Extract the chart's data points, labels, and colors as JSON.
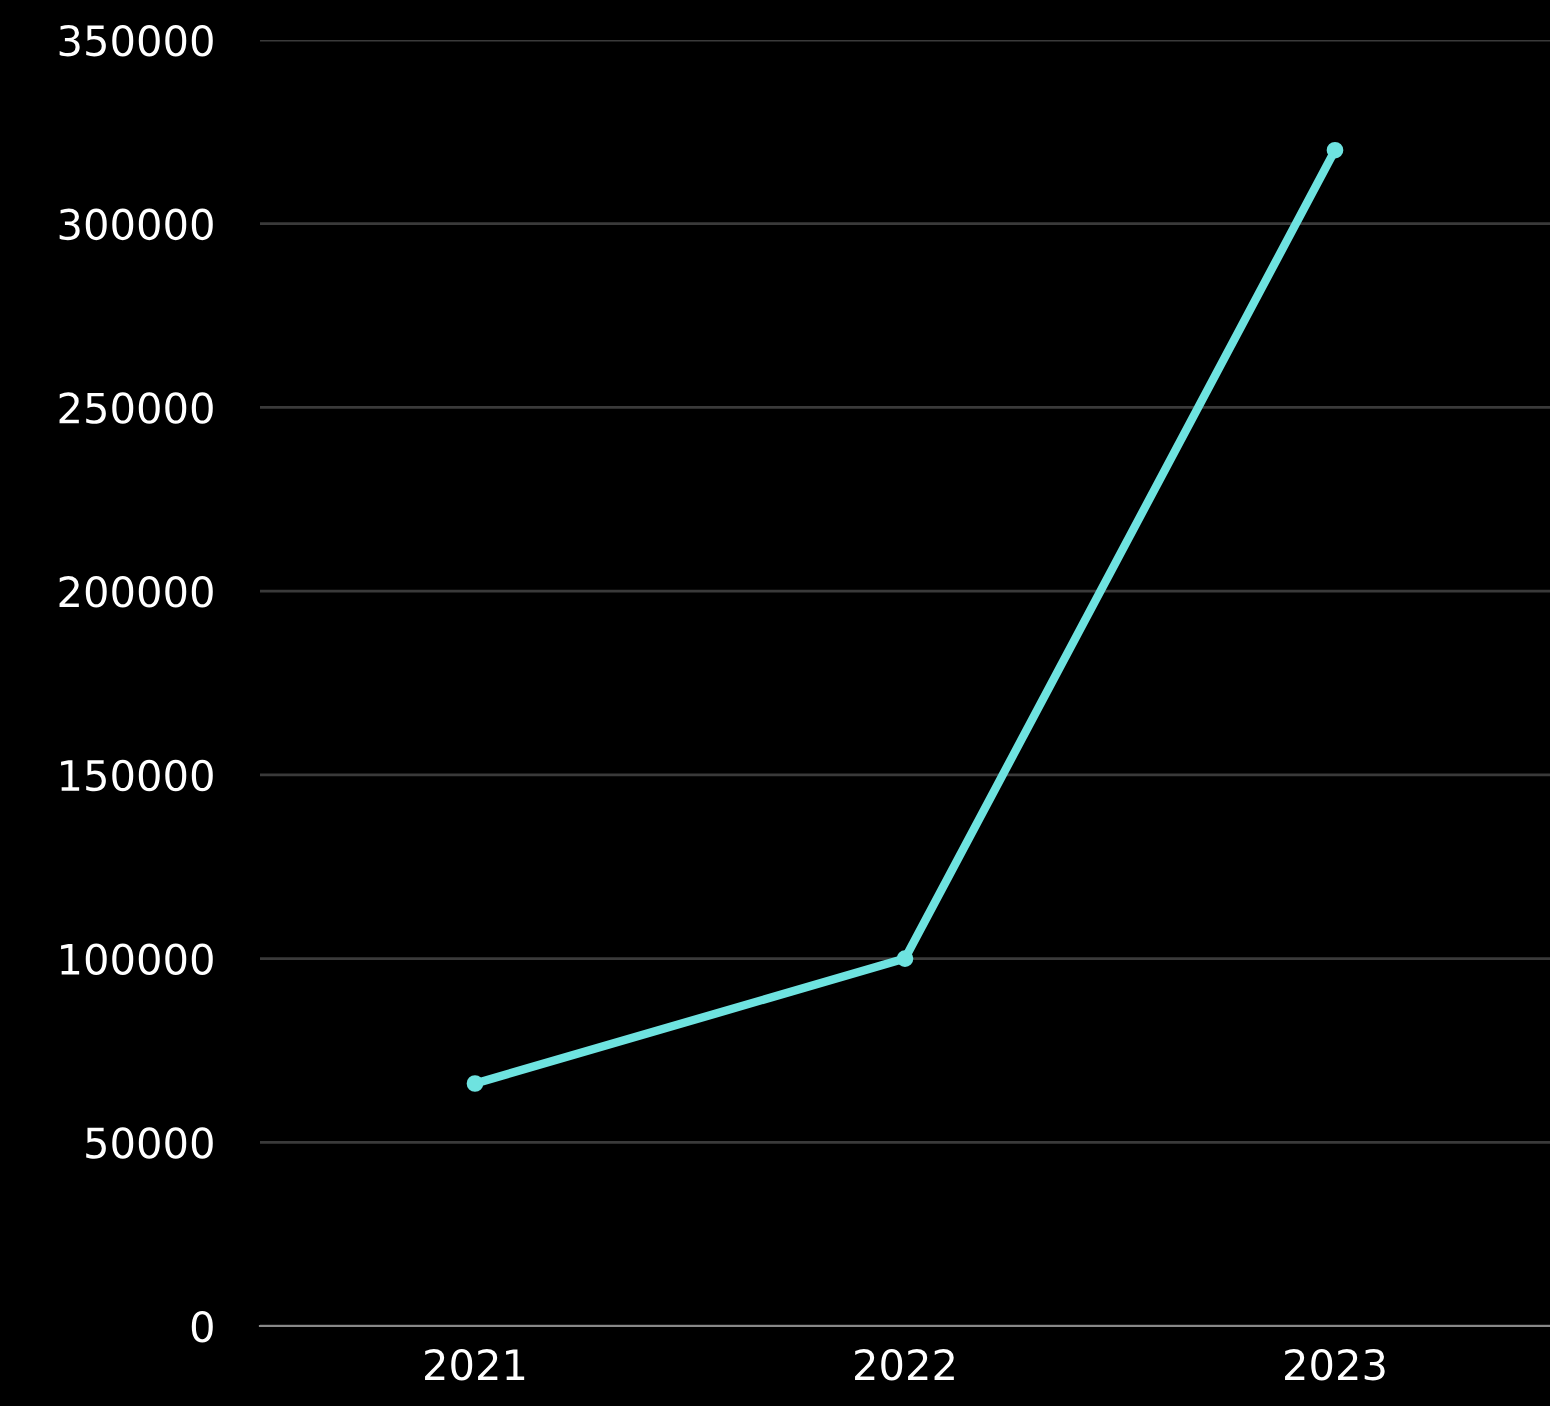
{
  "chart_data": {
    "type": "line",
    "categories": [
      "2021",
      "2022",
      "2023"
    ],
    "series": [
      {
        "color": "#6ee3e0",
        "values": [
          66000,
          100000,
          320000
        ]
      }
    ],
    "ylim": [
      0,
      350000
    ],
    "yticks": [
      0,
      50000,
      100000,
      150000,
      200000,
      250000,
      300000,
      350000
    ],
    "grid": "y",
    "marker": "circle",
    "line_style": "solid"
  }
}
